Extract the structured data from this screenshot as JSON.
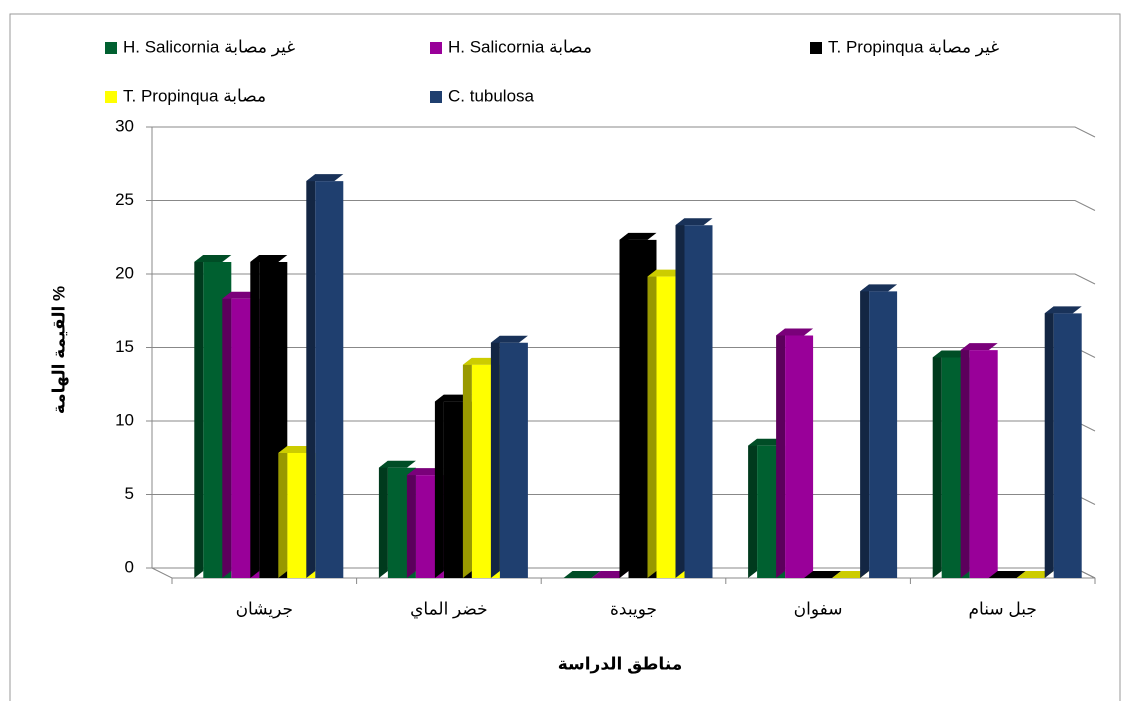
{
  "chart_data": {
    "type": "bar3d",
    "categories": [
      "جريشان",
      "خضر الماي",
      "جويبدة",
      "سفوان",
      "جبل سنام"
    ],
    "series": [
      {
        "name": "H. Salicornia غير مصابة",
        "color": "#006030",
        "values": [
          21.5,
          7.5,
          0,
          9,
          15
        ]
      },
      {
        "name": "H. Salicornia مصابة",
        "color": "#990099",
        "values": [
          19,
          7,
          0,
          16.5,
          15.5
        ]
      },
      {
        "name": "T. Propinqua غير مصابة",
        "color": "#000000",
        "values": [
          21.5,
          12,
          23,
          0,
          0
        ]
      },
      {
        "name": "T. Propinqua مصابة",
        "color": "#ffff00",
        "values": [
          8.5,
          14.5,
          20.5,
          0,
          0
        ]
      },
      {
        "name": "C. tubulosa",
        "color": "#1f3f6f",
        "values": [
          27,
          16,
          24,
          19.5,
          18
        ]
      }
    ],
    "ylim": [
      0,
      30
    ],
    "yticks": [
      0,
      5,
      10,
      15,
      20,
      25,
      30
    ],
    "grid": true,
    "y_label": "القيمة الهامة %",
    "x_label": "مناطق الدراسة"
  }
}
